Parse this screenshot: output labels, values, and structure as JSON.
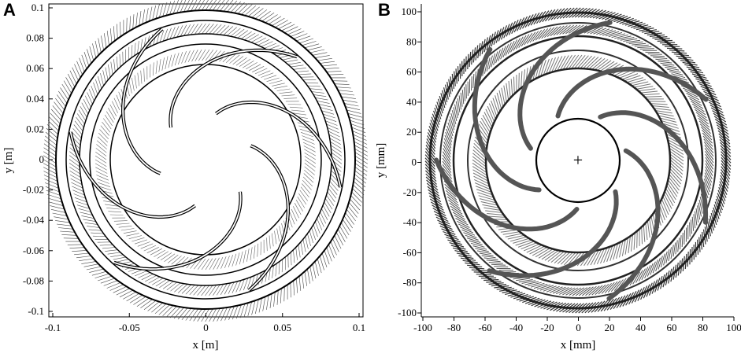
{
  "panels": [
    {
      "letter": "A",
      "xlabel": "x [m]",
      "ylabel": "y [m]",
      "xticks": [
        "-0.1",
        "-0.05",
        "0",
        "0.05",
        "0.1"
      ],
      "yticks": [
        "0.1",
        "0.08",
        "0.06",
        "0.04",
        "0.02",
        "0",
        "-0.02",
        "-0.04",
        "-0.06",
        "-0.08",
        "-0.1"
      ]
    },
    {
      "letter": "B",
      "xlabel": "x [mm]",
      "ylabel": "y [mm]",
      "xticks": [
        "-100",
        "-80",
        "-60",
        "-40",
        "-20",
        "0",
        "20",
        "40",
        "60",
        "80",
        "100"
      ],
      "yticks": [
        "100",
        "80",
        "60",
        "40",
        "20",
        "0",
        "-20",
        "-40",
        "-60",
        "-80",
        "-100"
      ],
      "center_marker": "+"
    }
  ]
}
